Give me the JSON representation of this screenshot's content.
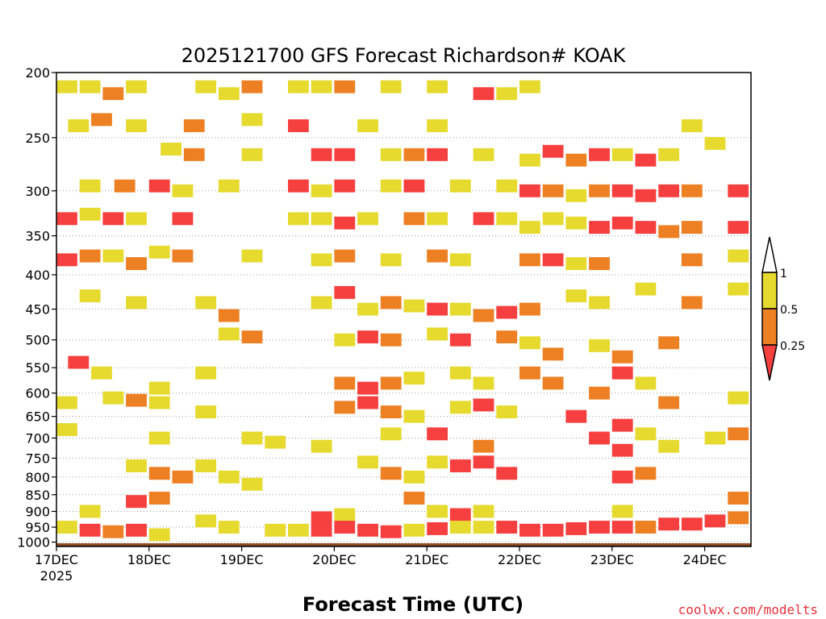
{
  "chart_data": {
    "type": "heatmap",
    "title": "2025121700 GFS Forecast Richardson# KOAK",
    "xlabel": "Forecast Time (UTC)",
    "ylabel": "",
    "credit": "coolwx.com/modelts",
    "x_unit": "hours from 17DEC 2025 00 UTC",
    "xlim": [
      0,
      180
    ],
    "y_ticks": [
      "200",
      "250",
      "300",
      "350",
      "400",
      "450",
      "500",
      "550",
      "600",
      "650",
      "700",
      "750",
      "800",
      "850",
      "900",
      "950",
      "1000"
    ],
    "y_tick_values": [
      200,
      250,
      300,
      350,
      400,
      450,
      500,
      550,
      600,
      650,
      700,
      750,
      800,
      850,
      900,
      950,
      1000
    ],
    "ylim_hPa": [
      200,
      1000
    ],
    "y_scale": "log-pressure",
    "x_ticks": [
      {
        "x": 0,
        "label": "17DEC",
        "sublabel": "2025"
      },
      {
        "x": 24,
        "label": "18DEC",
        "sublabel": ""
      },
      {
        "x": 48,
        "label": "19DEC",
        "sublabel": ""
      },
      {
        "x": 72,
        "label": "20DEC",
        "sublabel": ""
      },
      {
        "x": 96,
        "label": "21DEC",
        "sublabel": ""
      },
      {
        "x": 120,
        "label": "22DEC",
        "sublabel": ""
      },
      {
        "x": 144,
        "label": "23DEC",
        "sublabel": ""
      },
      {
        "x": 168,
        "label": "24DEC",
        "sublabel": ""
      }
    ],
    "gridlines": true,
    "colorbar": {
      "placement": "right",
      "labels": [
        "1",
        "0.5",
        "0.25"
      ],
      "bins": [
        {
          "range": "0.5-1",
          "color": "#e6da2e"
        },
        {
          "range": "0.25-0.5",
          "color": "#ee8024"
        },
        {
          "range": "<0.25",
          "color": "#f64040"
        }
      ]
    },
    "colors": {
      "yellow": "#e6da2e",
      "orange": "#ee8024",
      "red": "#f64040",
      "ground": "#8b4b23",
      "above": "#ffffff"
    },
    "categories_note": "cell value: 1 = 0.5-1, 2 = 0.25-0.5, 3 = <0.25",
    "cells": [
      {
        "x": 0,
        "p": 210,
        "v": 1
      },
      {
        "x": 6,
        "p": 210,
        "v": 1
      },
      {
        "x": 12,
        "p": 215,
        "v": 2
      },
      {
        "x": 18,
        "p": 210,
        "v": 1
      },
      {
        "x": 36,
        "p": 210,
        "v": 1
      },
      {
        "x": 42,
        "p": 215,
        "v": 1
      },
      {
        "x": 48,
        "p": 210,
        "v": 2
      },
      {
        "x": 60,
        "p": 210,
        "v": 1
      },
      {
        "x": 66,
        "p": 210,
        "v": 1
      },
      {
        "x": 72,
        "p": 210,
        "v": 2
      },
      {
        "x": 84,
        "p": 210,
        "v": 1
      },
      {
        "x": 96,
        "p": 210,
        "v": 1
      },
      {
        "x": 108,
        "p": 215,
        "v": 3
      },
      {
        "x": 114,
        "p": 215,
        "v": 1
      },
      {
        "x": 120,
        "p": 210,
        "v": 1
      },
      {
        "x": 3,
        "p": 240,
        "v": 1
      },
      {
        "x": 9,
        "p": 235,
        "v": 2
      },
      {
        "x": 18,
        "p": 240,
        "v": 1
      },
      {
        "x": 33,
        "p": 240,
        "v": 2
      },
      {
        "x": 48,
        "p": 235,
        "v": 1
      },
      {
        "x": 60,
        "p": 240,
        "v": 3
      },
      {
        "x": 78,
        "p": 240,
        "v": 1
      },
      {
        "x": 96,
        "p": 240,
        "v": 1
      },
      {
        "x": 27,
        "p": 260,
        "v": 1
      },
      {
        "x": 33,
        "p": 265,
        "v": 2
      },
      {
        "x": 48,
        "p": 265,
        "v": 1
      },
      {
        "x": 66,
        "p": 265,
        "v": 3
      },
      {
        "x": 72,
        "p": 265,
        "v": 3
      },
      {
        "x": 84,
        "p": 265,
        "v": 1
      },
      {
        "x": 90,
        "p": 265,
        "v": 2
      },
      {
        "x": 96,
        "p": 265,
        "v": 3
      },
      {
        "x": 108,
        "p": 265,
        "v": 1
      },
      {
        "x": 120,
        "p": 270,
        "v": 1
      },
      {
        "x": 126,
        "p": 262,
        "v": 3
      },
      {
        "x": 132,
        "p": 270,
        "v": 2
      },
      {
        "x": 138,
        "p": 265,
        "v": 3
      },
      {
        "x": 144,
        "p": 265,
        "v": 1
      },
      {
        "x": 150,
        "p": 270,
        "v": 3
      },
      {
        "x": 156,
        "p": 265,
        "v": 1
      },
      {
        "x": 162,
        "p": 240,
        "v": 1
      },
      {
        "x": 168,
        "p": 255,
        "v": 1
      },
      {
        "x": 6,
        "p": 295,
        "v": 1
      },
      {
        "x": 15,
        "p": 295,
        "v": 2
      },
      {
        "x": 24,
        "p": 295,
        "v": 3
      },
      {
        "x": 30,
        "p": 300,
        "v": 1
      },
      {
        "x": 42,
        "p": 295,
        "v": 1
      },
      {
        "x": 60,
        "p": 295,
        "v": 3
      },
      {
        "x": 66,
        "p": 300,
        "v": 1
      },
      {
        "x": 72,
        "p": 295,
        "v": 3
      },
      {
        "x": 84,
        "p": 295,
        "v": 1
      },
      {
        "x": 90,
        "p": 295,
        "v": 3
      },
      {
        "x": 102,
        "p": 295,
        "v": 1
      },
      {
        "x": 114,
        "p": 295,
        "v": 1
      },
      {
        "x": 120,
        "p": 300,
        "v": 3
      },
      {
        "x": 126,
        "p": 300,
        "v": 2
      },
      {
        "x": 132,
        "p": 305,
        "v": 1
      },
      {
        "x": 138,
        "p": 300,
        "v": 2
      },
      {
        "x": 144,
        "p": 300,
        "v": 3
      },
      {
        "x": 150,
        "p": 305,
        "v": 3
      },
      {
        "x": 156,
        "p": 300,
        "v": 3
      },
      {
        "x": 162,
        "p": 300,
        "v": 2
      },
      {
        "x": 174,
        "p": 300,
        "v": 3
      },
      {
        "x": 180,
        "p": 305,
        "v": 3
      },
      {
        "x": 0,
        "p": 330,
        "v": 3
      },
      {
        "x": 6,
        "p": 325,
        "v": 1
      },
      {
        "x": 12,
        "p": 330,
        "v": 3
      },
      {
        "x": 18,
        "p": 330,
        "v": 1
      },
      {
        "x": 30,
        "p": 330,
        "v": 3
      },
      {
        "x": 60,
        "p": 330,
        "v": 1
      },
      {
        "x": 66,
        "p": 330,
        "v": 1
      },
      {
        "x": 72,
        "p": 335,
        "v": 3
      },
      {
        "x": 78,
        "p": 330,
        "v": 1
      },
      {
        "x": 90,
        "p": 330,
        "v": 2
      },
      {
        "x": 96,
        "p": 330,
        "v": 1
      },
      {
        "x": 108,
        "p": 330,
        "v": 3
      },
      {
        "x": 114,
        "p": 330,
        "v": 1
      },
      {
        "x": 120,
        "p": 340,
        "v": 1
      },
      {
        "x": 126,
        "p": 330,
        "v": 1
      },
      {
        "x": 132,
        "p": 335,
        "v": 1
      },
      {
        "x": 138,
        "p": 340,
        "v": 3
      },
      {
        "x": 144,
        "p": 335,
        "v": 3
      },
      {
        "x": 150,
        "p": 340,
        "v": 3
      },
      {
        "x": 156,
        "p": 345,
        "v": 2
      },
      {
        "x": 162,
        "p": 340,
        "v": 2
      },
      {
        "x": 174,
        "p": 340,
        "v": 3
      },
      {
        "x": 180,
        "p": 345,
        "v": 3
      },
      {
        "x": 0,
        "p": 380,
        "v": 3
      },
      {
        "x": 6,
        "p": 375,
        "v": 2
      },
      {
        "x": 12,
        "p": 375,
        "v": 1
      },
      {
        "x": 18,
        "p": 385,
        "v": 2
      },
      {
        "x": 24,
        "p": 370,
        "v": 1
      },
      {
        "x": 30,
        "p": 375,
        "v": 2
      },
      {
        "x": 48,
        "p": 375,
        "v": 1
      },
      {
        "x": 66,
        "p": 380,
        "v": 1
      },
      {
        "x": 72,
        "p": 375,
        "v": 2
      },
      {
        "x": 84,
        "p": 380,
        "v": 1
      },
      {
        "x": 96,
        "p": 375,
        "v": 2
      },
      {
        "x": 102,
        "p": 380,
        "v": 1
      },
      {
        "x": 120,
        "p": 380,
        "v": 2
      },
      {
        "x": 126,
        "p": 380,
        "v": 3
      },
      {
        "x": 132,
        "p": 385,
        "v": 1
      },
      {
        "x": 138,
        "p": 385,
        "v": 2
      },
      {
        "x": 162,
        "p": 380,
        "v": 2
      },
      {
        "x": 174,
        "p": 375,
        "v": 1
      },
      {
        "x": 6,
        "p": 430,
        "v": 1
      },
      {
        "x": 18,
        "p": 440,
        "v": 1
      },
      {
        "x": 36,
        "p": 440,
        "v": 1
      },
      {
        "x": 42,
        "p": 460,
        "v": 2
      },
      {
        "x": 66,
        "p": 440,
        "v": 1
      },
      {
        "x": 72,
        "p": 425,
        "v": 3
      },
      {
        "x": 78,
        "p": 450,
        "v": 1
      },
      {
        "x": 84,
        "p": 440,
        "v": 2
      },
      {
        "x": 90,
        "p": 445,
        "v": 1
      },
      {
        "x": 96,
        "p": 450,
        "v": 3
      },
      {
        "x": 102,
        "p": 450,
        "v": 1
      },
      {
        "x": 108,
        "p": 460,
        "v": 2
      },
      {
        "x": 114,
        "p": 455,
        "v": 3
      },
      {
        "x": 120,
        "p": 450,
        "v": 2
      },
      {
        "x": 132,
        "p": 430,
        "v": 1
      },
      {
        "x": 138,
        "p": 440,
        "v": 1
      },
      {
        "x": 150,
        "p": 420,
        "v": 1
      },
      {
        "x": 162,
        "p": 440,
        "v": 2
      },
      {
        "x": 174,
        "p": 420,
        "v": 1
      },
      {
        "x": 42,
        "p": 490,
        "v": 1
      },
      {
        "x": 48,
        "p": 495,
        "v": 2
      },
      {
        "x": 72,
        "p": 500,
        "v": 1
      },
      {
        "x": 78,
        "p": 495,
        "v": 3
      },
      {
        "x": 84,
        "p": 500,
        "v": 2
      },
      {
        "x": 96,
        "p": 490,
        "v": 1
      },
      {
        "x": 102,
        "p": 500,
        "v": 3
      },
      {
        "x": 114,
        "p": 495,
        "v": 2
      },
      {
        "x": 120,
        "p": 505,
        "v": 1
      },
      {
        "x": 126,
        "p": 525,
        "v": 2
      },
      {
        "x": 138,
        "p": 510,
        "v": 1
      },
      {
        "x": 144,
        "p": 530,
        "v": 2
      },
      {
        "x": 156,
        "p": 505,
        "v": 2
      },
      {
        "x": 3,
        "p": 540,
        "v": 3
      },
      {
        "x": 9,
        "p": 560,
        "v": 1
      },
      {
        "x": 24,
        "p": 590,
        "v": 1
      },
      {
        "x": 36,
        "p": 560,
        "v": 1
      },
      {
        "x": 72,
        "p": 580,
        "v": 2
      },
      {
        "x": 78,
        "p": 590,
        "v": 3
      },
      {
        "x": 84,
        "p": 580,
        "v": 2
      },
      {
        "x": 90,
        "p": 570,
        "v": 1
      },
      {
        "x": 102,
        "p": 560,
        "v": 1
      },
      {
        "x": 108,
        "p": 580,
        "v": 1
      },
      {
        "x": 120,
        "p": 560,
        "v": 2
      },
      {
        "x": 126,
        "p": 580,
        "v": 2
      },
      {
        "x": 138,
        "p": 600,
        "v": 2
      },
      {
        "x": 144,
        "p": 560,
        "v": 3
      },
      {
        "x": 150,
        "p": 580,
        "v": 1
      },
      {
        "x": 156,
        "p": 620,
        "v": 2
      },
      {
        "x": 174,
        "p": 610,
        "v": 1
      },
      {
        "x": 180,
        "p": 590,
        "v": 1
      },
      {
        "x": 0,
        "p": 620,
        "v": 1
      },
      {
        "x": 12,
        "p": 610,
        "v": 1
      },
      {
        "x": 18,
        "p": 615,
        "v": 2
      },
      {
        "x": 24,
        "p": 620,
        "v": 1
      },
      {
        "x": 36,
        "p": 640,
        "v": 1
      },
      {
        "x": 72,
        "p": 630,
        "v": 2
      },
      {
        "x": 78,
        "p": 620,
        "v": 3
      },
      {
        "x": 84,
        "p": 640,
        "v": 2
      },
      {
        "x": 90,
        "p": 650,
        "v": 1
      },
      {
        "x": 102,
        "p": 630,
        "v": 1
      },
      {
        "x": 108,
        "p": 625,
        "v": 3
      },
      {
        "x": 114,
        "p": 640,
        "v": 1
      },
      {
        "x": 132,
        "p": 650,
        "v": 3
      },
      {
        "x": 144,
        "p": 670,
        "v": 3
      },
      {
        "x": 150,
        "p": 690,
        "v": 1
      },
      {
        "x": 0,
        "p": 680,
        "v": 1
      },
      {
        "x": 24,
        "p": 700,
        "v": 1
      },
      {
        "x": 48,
        "p": 700,
        "v": 1
      },
      {
        "x": 54,
        "p": 710,
        "v": 1
      },
      {
        "x": 66,
        "p": 720,
        "v": 1
      },
      {
        "x": 84,
        "p": 690,
        "v": 1
      },
      {
        "x": 96,
        "p": 690,
        "v": 3
      },
      {
        "x": 108,
        "p": 720,
        "v": 2
      },
      {
        "x": 138,
        "p": 700,
        "v": 3
      },
      {
        "x": 144,
        "p": 730,
        "v": 3
      },
      {
        "x": 156,
        "p": 720,
        "v": 1
      },
      {
        "x": 168,
        "p": 700,
        "v": 1
      },
      {
        "x": 174,
        "p": 690,
        "v": 2
      },
      {
        "x": 18,
        "p": 770,
        "v": 1
      },
      {
        "x": 24,
        "p": 790,
        "v": 2
      },
      {
        "x": 30,
        "p": 800,
        "v": 2
      },
      {
        "x": 36,
        "p": 770,
        "v": 1
      },
      {
        "x": 42,
        "p": 800,
        "v": 1
      },
      {
        "x": 48,
        "p": 820,
        "v": 1
      },
      {
        "x": 78,
        "p": 760,
        "v": 1
      },
      {
        "x": 84,
        "p": 790,
        "v": 2
      },
      {
        "x": 90,
        "p": 800,
        "v": 1
      },
      {
        "x": 96,
        "p": 760,
        "v": 1
      },
      {
        "x": 102,
        "p": 770,
        "v": 3
      },
      {
        "x": 108,
        "p": 760,
        "v": 3
      },
      {
        "x": 114,
        "p": 790,
        "v": 3
      },
      {
        "x": 144,
        "p": 800,
        "v": 3
      },
      {
        "x": 150,
        "p": 790,
        "v": 2
      },
      {
        "x": 6,
        "p": 900,
        "v": 1
      },
      {
        "x": 18,
        "p": 870,
        "v": 3
      },
      {
        "x": 24,
        "p": 860,
        "v": 2
      },
      {
        "x": 36,
        "p": 930,
        "v": 1
      },
      {
        "x": 66,
        "p": 920,
        "v": 3
      },
      {
        "x": 72,
        "p": 910,
        "v": 1
      },
      {
        "x": 90,
        "p": 860,
        "v": 2
      },
      {
        "x": 96,
        "p": 900,
        "v": 1
      },
      {
        "x": 102,
        "p": 910,
        "v": 3
      },
      {
        "x": 108,
        "p": 900,
        "v": 1
      },
      {
        "x": 144,
        "p": 900,
        "v": 1
      },
      {
        "x": 174,
        "p": 860,
        "v": 2
      },
      {
        "x": 180,
        "p": 840,
        "v": 3
      },
      {
        "x": 0,
        "p": 950,
        "v": 1
      },
      {
        "x": 6,
        "p": 960,
        "v": 3
      },
      {
        "x": 12,
        "p": 965,
        "v": 2
      },
      {
        "x": 18,
        "p": 960,
        "v": 3
      },
      {
        "x": 24,
        "p": 975,
        "v": 1
      },
      {
        "x": 42,
        "p": 950,
        "v": 1
      },
      {
        "x": 54,
        "p": 960,
        "v": 1
      },
      {
        "x": 60,
        "p": 960,
        "v": 1
      },
      {
        "x": 66,
        "p": 960,
        "v": 3
      },
      {
        "x": 72,
        "p": 950,
        "v": 3
      },
      {
        "x": 78,
        "p": 960,
        "v": 3
      },
      {
        "x": 84,
        "p": 965,
        "v": 3
      },
      {
        "x": 90,
        "p": 960,
        "v": 1
      },
      {
        "x": 96,
        "p": 955,
        "v": 3
      },
      {
        "x": 102,
        "p": 950,
        "v": 1
      },
      {
        "x": 108,
        "p": 950,
        "v": 1
      },
      {
        "x": 114,
        "p": 950,
        "v": 3
      },
      {
        "x": 120,
        "p": 960,
        "v": 3
      },
      {
        "x": 126,
        "p": 960,
        "v": 3
      },
      {
        "x": 132,
        "p": 955,
        "v": 3
      },
      {
        "x": 138,
        "p": 950,
        "v": 3
      },
      {
        "x": 144,
        "p": 950,
        "v": 3
      },
      {
        "x": 150,
        "p": 950,
        "v": 2
      },
      {
        "x": 156,
        "p": 940,
        "v": 3
      },
      {
        "x": 162,
        "p": 940,
        "v": 3
      },
      {
        "x": 168,
        "p": 930,
        "v": 3
      },
      {
        "x": 174,
        "p": 920,
        "v": 2
      },
      {
        "x": 180,
        "p": 920,
        "v": 3
      }
    ]
  }
}
